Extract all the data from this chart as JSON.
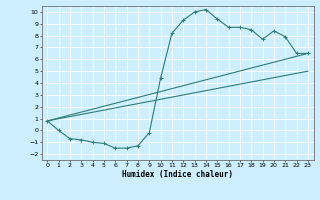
{
  "title": "",
  "xlabel": "Humidex (Indice chaleur)",
  "bg_color": "#cceeff",
  "line_color": "#2d7d74",
  "grid_color": "#ffffff",
  "xlim": [
    -0.5,
    23.5
  ],
  "ylim": [
    -2.5,
    10.5
  ],
  "xticks": [
    0,
    1,
    2,
    3,
    4,
    5,
    6,
    7,
    8,
    9,
    10,
    11,
    12,
    13,
    14,
    15,
    16,
    17,
    18,
    19,
    20,
    21,
    22,
    23
  ],
  "yticks": [
    -2,
    -1,
    0,
    1,
    2,
    3,
    4,
    5,
    6,
    7,
    8,
    9,
    10
  ],
  "curve1_x": [
    0,
    1,
    2,
    3,
    4,
    5,
    6,
    7,
    8,
    9,
    10,
    11,
    12,
    13,
    14,
    15,
    16,
    17,
    18,
    19,
    20,
    21,
    22,
    23
  ],
  "curve1_y": [
    0.8,
    0.0,
    -0.7,
    -0.8,
    -1.0,
    -1.1,
    -1.5,
    -1.5,
    -1.3,
    -0.2,
    4.4,
    8.2,
    9.3,
    10.0,
    10.2,
    9.4,
    8.7,
    8.7,
    8.5,
    7.7,
    8.4,
    7.9,
    6.5,
    6.5
  ],
  "line2_x": [
    0,
    23
  ],
  "line2_y": [
    0.8,
    6.5
  ],
  "line3_x": [
    0,
    23
  ],
  "line3_y": [
    0.8,
    5.0
  ]
}
